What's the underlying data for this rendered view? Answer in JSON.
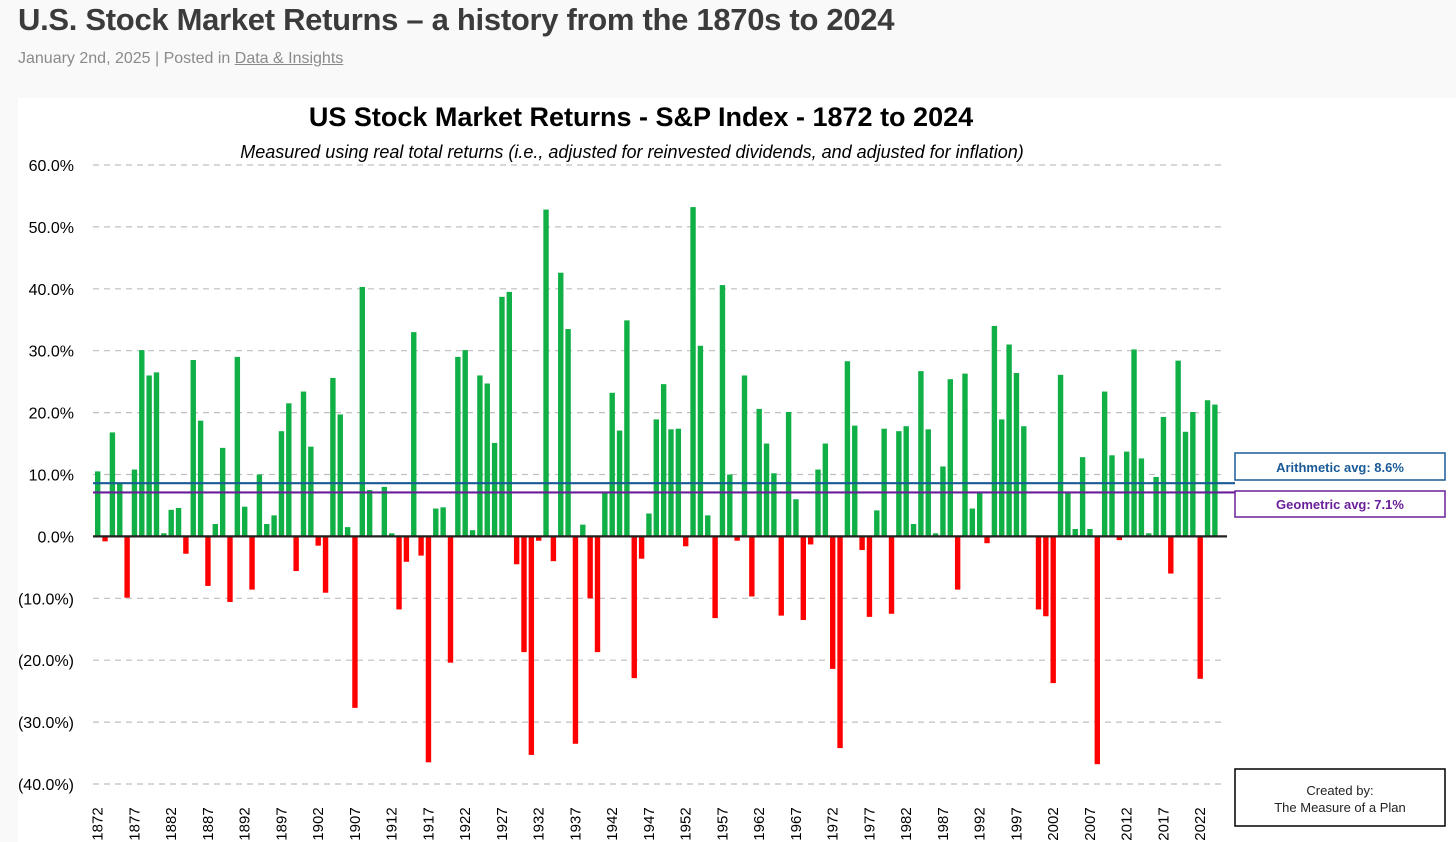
{
  "page": {
    "title": "U.S. Stock Market Returns – a history from the 1870s to 2024",
    "date": "January 2nd, 2025",
    "posted_in": "| Posted in",
    "category": "Data & Insights"
  },
  "colors": {
    "positive": "#11b047",
    "negative": "#ff0000",
    "arithmetic": "#1a5a96",
    "geometric": "#6a1f9a",
    "grid": "#bfbfbf"
  },
  "chart_data": {
    "type": "bar",
    "title": "US Stock Market Returns - S&P Index - 1872 to 2024",
    "subtitle": "Measured using real total returns (i.e., adjusted for reinvested dividends, and adjusted for inflation)",
    "xlabel": "",
    "ylabel": "",
    "ylim": [
      -40,
      60
    ],
    "yticks": [
      60,
      50,
      40,
      30,
      20,
      10,
      0,
      -10,
      -20,
      -30,
      -40
    ],
    "ytick_labels": [
      "60.0%",
      "50.0%",
      "40.0%",
      "30.0%",
      "20.0%",
      "10.0%",
      "0.0%",
      "(10.0%)",
      "(20.0%)",
      "(30.0%)",
      "(40.0%)"
    ],
    "grid": true,
    "start_year": 1872,
    "end_year": 2024,
    "xtick_labels": [
      "1872",
      "1877",
      "1882",
      "1887",
      "1892",
      "1897",
      "1902",
      "1907",
      "1912",
      "1917",
      "1922",
      "1927",
      "1932",
      "1937",
      "1942",
      "1947",
      "1952",
      "1957",
      "1962",
      "1967",
      "1972",
      "1977",
      "1982",
      "1987",
      "1992",
      "1997",
      "2002",
      "2007",
      "2012",
      "2017",
      "2022"
    ],
    "values": [
      10.5,
      -0.8,
      16.8,
      8.5,
      -9.9,
      10.8,
      30.1,
      26,
      26.5,
      0.5,
      4.3,
      4.6,
      -2.8,
      28.5,
      18.7,
      -8,
      2,
      14.3,
      -10.6,
      29,
      4.8,
      -8.6,
      10,
      2,
      3.4,
      17,
      21.5,
      -5.6,
      23.4,
      14.5,
      -1.5,
      -9.1,
      25.6,
      19.7,
      1.5,
      -27.7,
      40.3,
      7.5,
      0,
      8,
      0.5,
      -11.8,
      -4.1,
      33,
      -3.1,
      -36.5,
      4.5,
      4.7,
      -20.4,
      29,
      30.1,
      1,
      26,
      24.7,
      15.1,
      38.7,
      39.5,
      -4.5,
      -18.7,
      -35.3,
      -0.7,
      52.8,
      -4,
      42.6,
      33.5,
      -33.5,
      1.9,
      -10,
      -18.7,
      7.2,
      23.2,
      17.1,
      34.9,
      -22.9,
      -3.6,
      3.7,
      18.9,
      24.6,
      17.3,
      17.4,
      -1.6,
      53.2,
      30.8,
      3.4,
      -13.2,
      40.6,
      10,
      -0.7,
      26,
      -9.7,
      20.6,
      15,
      10.2,
      -12.8,
      20.1,
      6,
      -13.5,
      -1.3,
      10.8,
      15,
      -21.4,
      -34.2,
      28.3,
      17.9,
      -2.2,
      -13,
      4.2,
      17.4,
      -12.5,
      17,
      17.8,
      2,
      26.7,
      17.3,
      0.5,
      11.3,
      25.4,
      -8.6,
      26.3,
      4.5,
      7,
      -1.1,
      34,
      18.9,
      31,
      26.4,
      17.8,
      0,
      -11.8,
      -12.9,
      -23.7,
      26.1,
      7,
      1.2,
      12.8,
      1.2,
      -36.8,
      23.4,
      13.1,
      -0.6,
      13.7,
      30.2,
      12.6,
      0.5,
      9.6,
      19.3,
      -6,
      28.4,
      16.9,
      20.1,
      -23,
      22,
      21.3
    ],
    "annotations": {
      "arithmetic_avg": {
        "label": "Arithmetic avg: 8.6%",
        "value": 8.6
      },
      "geometric_avg": {
        "label": "Geometric avg: 7.1%",
        "value": 7.1
      },
      "credit": {
        "line1": "Created by:",
        "line2": "The Measure of a Plan"
      }
    }
  }
}
